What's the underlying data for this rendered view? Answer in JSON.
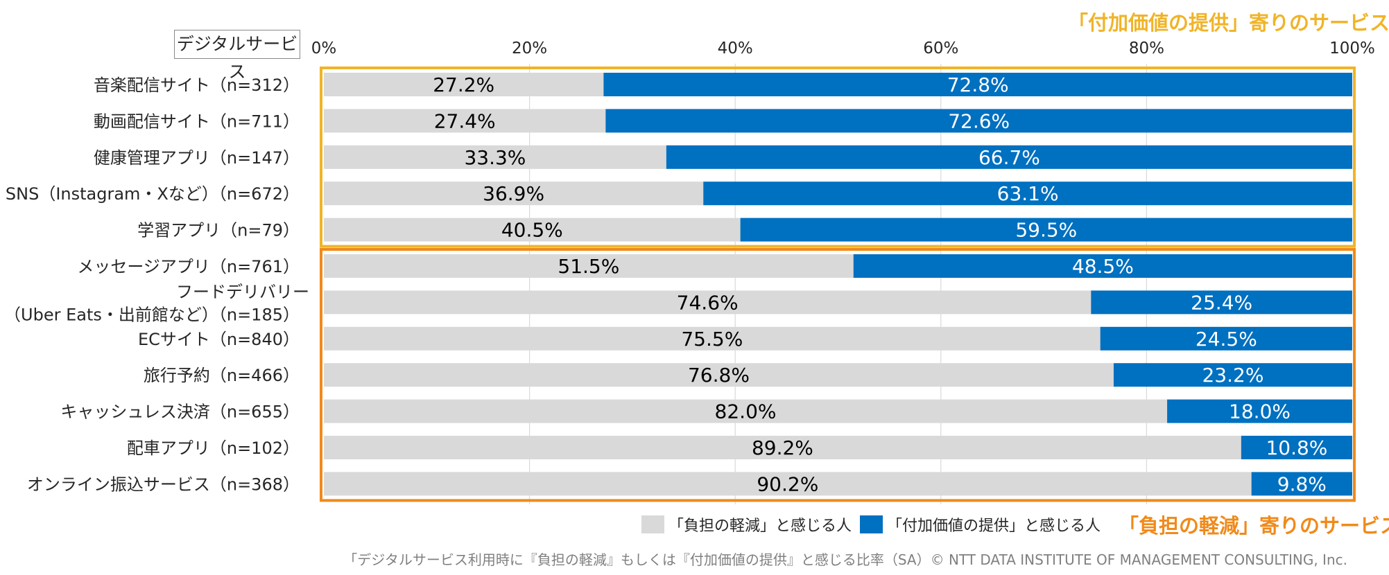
{
  "header_label": "デジタルサービス",
  "top_group_label": "「付加価値の提供」寄りのサービス",
  "bottom_group_label": "「負担の軽減」寄りのサービス",
  "legend": [
    {
      "label": "「負担の軽減」と感じる人",
      "color": "#d9d9d9"
    },
    {
      "label": "「付加価値の提供」と感じる人",
      "color": "#0070c0"
    }
  ],
  "footnote": "「デジタルサービス利用時に『負担の軽減』もしくは『付加価値の提供』と感じる比率（SA）© NTT DATA INSTITUTE OF MANAGEMENT CONSULTING, Inc.",
  "colors": {
    "burden": "#d9d9d9",
    "value": "#0070c0",
    "top_frame": "#f0b428",
    "bottom_frame": "#f08a1a"
  },
  "chart_data": {
    "type": "bar",
    "orientation": "horizontal",
    "stacked": true,
    "xlim": [
      0,
      100
    ],
    "x_ticks": [
      "0%",
      "20%",
      "40%",
      "60%",
      "80%",
      "100%"
    ],
    "grid": true,
    "categories": [
      [
        "音楽配信サイト（n=312）"
      ],
      [
        "動画配信サイト（n=711）"
      ],
      [
        "健康管理アプリ（n=147）"
      ],
      [
        "SNS（Instagram・Xなど）（n=672）"
      ],
      [
        "学習アプリ（n=79）"
      ],
      [
        "メッセージアプリ（n=761）"
      ],
      [
        "フードデリバリー",
        "（Uber Eats・出前館など）（n=185）"
      ],
      [
        "ECサイト（n=840）"
      ],
      [
        "旅行予約（n=466）"
      ],
      [
        "キャッシュレス決済（n=655）"
      ],
      [
        "配車アプリ（n=102）"
      ],
      [
        "オンライン振込サービス（n=368）"
      ]
    ],
    "series": [
      {
        "name": "「負担の軽減」と感じる人",
        "values": [
          27.2,
          27.4,
          33.3,
          36.9,
          40.5,
          51.5,
          74.6,
          75.5,
          76.8,
          82.0,
          89.2,
          90.2
        ]
      },
      {
        "name": "「付加価値の提供」と感じる人",
        "values": [
          72.8,
          72.6,
          66.7,
          63.1,
          59.5,
          48.5,
          25.4,
          24.5,
          23.2,
          18.0,
          10.8,
          9.8
        ]
      }
    ],
    "data_labels": {
      "burden": [
        "27.2%",
        "27.4%",
        "33.3%",
        "36.9%",
        "40.5%",
        "51.5%",
        "74.6%",
        "75.5%",
        "76.8%",
        "82.0%",
        "89.2%",
        "90.2%"
      ],
      "value": [
        "72.8%",
        "72.6%",
        "66.7%",
        "63.1%",
        "59.5%",
        "48.5%",
        "25.4%",
        "24.5%",
        "23.2%",
        "18.0%",
        "10.8%",
        "9.8%"
      ]
    },
    "groups": [
      {
        "label": "「付加価値の提供」寄りのサービス",
        "rows": [
          0,
          4
        ]
      },
      {
        "label": "「負担の軽減」寄りのサービス",
        "rows": [
          5,
          11
        ]
      }
    ]
  }
}
